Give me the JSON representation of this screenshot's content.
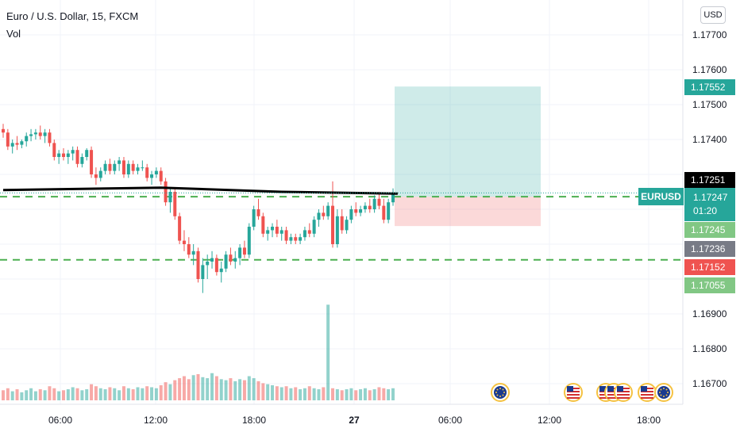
{
  "legend": {
    "symbol": "Euro / U.S. Dollar, 15, FXCM",
    "indicator": "Vol"
  },
  "currency_button": "USD",
  "y_axis_ticks": [
    "1.17700",
    "1.17600",
    "1.17500",
    "1.17400",
    "1.16900",
    "1.16800",
    "1.16700"
  ],
  "x_axis_ticks": [
    {
      "label": "06:00",
      "bold": false
    },
    {
      "label": "12:00",
      "bold": false
    },
    {
      "label": "18:00",
      "bold": false
    },
    {
      "label": "27",
      "bold": true
    },
    {
      "label": "06:00",
      "bold": false
    },
    {
      "label": "12:00",
      "bold": false
    },
    {
      "label": "18:00",
      "bold": false
    }
  ],
  "price_tags": {
    "target": {
      "value": "1.17552",
      "color": "#26a69a"
    },
    "level_black": {
      "value": "1.17251",
      "color": "#000000"
    },
    "level_green1": {
      "value": "1.17245",
      "color": "#81c784"
    },
    "level_gray": {
      "value": "1.17236",
      "color": "#787b86"
    },
    "stop": {
      "value": "1.17152",
      "color": "#ef5350"
    },
    "level_green2": {
      "value": "1.17055",
      "color": "#81c784"
    }
  },
  "current_price": {
    "symbol": "EURUSD",
    "value": "1.17247",
    "countdown": "01:20",
    "color": "#26a69a"
  },
  "colors": {
    "up": "#26a69a",
    "down": "#ef5350",
    "dashed_line": "#4caf50",
    "trend_line": "#000000",
    "profit_zone": "#26a69a",
    "loss_zone": "#ef5350"
  },
  "event_icons": [
    "eu-flag-icon",
    "us-flag-icon",
    "us-flag-icon",
    "us-flag-icon",
    "us-flag-icon",
    "us-flag-icon",
    "eu-flag-icon"
  ],
  "chart_data": {
    "type": "candlestick",
    "title": "Euro / U.S. Dollar, 15, FXCM",
    "ylim": [
      1.1665,
      1.178
    ],
    "candles": [
      [
        1.1743,
        1.17445,
        1.17405,
        1.1742
      ],
      [
        1.1742,
        1.1743,
        1.1737,
        1.1738
      ],
      [
        1.1738,
        1.174,
        1.1736,
        1.1739
      ],
      [
        1.1739,
        1.1741,
        1.1737,
        1.17385
      ],
      [
        1.17385,
        1.174,
        1.17375,
        1.17395
      ],
      [
        1.17395,
        1.1742,
        1.1738,
        1.1741
      ],
      [
        1.1741,
        1.1743,
        1.17395,
        1.17415
      ],
      [
        1.17415,
        1.1743,
        1.174,
        1.1742
      ],
      [
        1.1742,
        1.1744,
        1.174,
        1.1741
      ],
      [
        1.1741,
        1.1743,
        1.1739,
        1.1742
      ],
      [
        1.1742,
        1.1743,
        1.1738,
        1.1739
      ],
      [
        1.1739,
        1.174,
        1.1734,
        1.1735
      ],
      [
        1.1735,
        1.1737,
        1.1733,
        1.1736
      ],
      [
        1.1736,
        1.17375,
        1.1734,
        1.1735
      ],
      [
        1.1735,
        1.1737,
        1.1733,
        1.1736
      ],
      [
        1.1736,
        1.1738,
        1.1734,
        1.1737
      ],
      [
        1.1737,
        1.1738,
        1.1732,
        1.1733
      ],
      [
        1.1733,
        1.1736,
        1.1732,
        1.1735
      ],
      [
        1.1735,
        1.17375,
        1.1734,
        1.1737
      ],
      [
        1.1737,
        1.1738,
        1.1729,
        1.173
      ],
      [
        1.173,
        1.1732,
        1.1727,
        1.1729
      ],
      [
        1.1729,
        1.1732,
        1.1728,
        1.1731
      ],
      [
        1.1731,
        1.1734,
        1.173,
        1.1733
      ],
      [
        1.1733,
        1.17345,
        1.173,
        1.1731
      ],
      [
        1.1731,
        1.1734,
        1.173,
        1.1733
      ],
      [
        1.1733,
        1.1735,
        1.1731,
        1.1734
      ],
      [
        1.1734,
        1.1735,
        1.1729,
        1.173
      ],
      [
        1.173,
        1.1734,
        1.1729,
        1.1733
      ],
      [
        1.1733,
        1.1734,
        1.173,
        1.1731
      ],
      [
        1.1731,
        1.1733,
        1.173,
        1.1732
      ],
      [
        1.1732,
        1.1734,
        1.1731,
        1.1732
      ],
      [
        1.1732,
        1.1733,
        1.1728,
        1.1729
      ],
      [
        1.1729,
        1.1731,
        1.1727,
        1.173
      ],
      [
        1.173,
        1.1732,
        1.1729,
        1.1731
      ],
      [
        1.1731,
        1.1732,
        1.1727,
        1.1728
      ],
      [
        1.1728,
        1.1729,
        1.1721,
        1.1722
      ],
      [
        1.1722,
        1.1726,
        1.1719,
        1.1725
      ],
      [
        1.1725,
        1.1726,
        1.1717,
        1.1718
      ],
      [
        1.1718,
        1.1719,
        1.171,
        1.1711
      ],
      [
        1.1711,
        1.1714,
        1.1708,
        1.171
      ],
      [
        1.171,
        1.1712,
        1.1706,
        1.1707
      ],
      [
        1.1707,
        1.171,
        1.1704,
        1.1708
      ],
      [
        1.1708,
        1.1709,
        1.1699,
        1.17
      ],
      [
        1.17,
        1.1706,
        1.1696,
        1.1704
      ],
      [
        1.1704,
        1.1707,
        1.17,
        1.1705
      ],
      [
        1.1705,
        1.1708,
        1.1703,
        1.1706
      ],
      [
        1.1706,
        1.1707,
        1.1701,
        1.1702
      ],
      [
        1.1702,
        1.1705,
        1.1699,
        1.1703
      ],
      [
        1.1703,
        1.1708,
        1.1702,
        1.1707
      ],
      [
        1.1707,
        1.1709,
        1.1704,
        1.1705
      ],
      [
        1.1705,
        1.1708,
        1.1703,
        1.1706
      ],
      [
        1.1706,
        1.171,
        1.1704,
        1.1709
      ],
      [
        1.1709,
        1.1711,
        1.1706,
        1.1707
      ],
      [
        1.1707,
        1.1716,
        1.1706,
        1.1715
      ],
      [
        1.1715,
        1.1721,
        1.1714,
        1.172
      ],
      [
        1.172,
        1.1723,
        1.1717,
        1.1718
      ],
      [
        1.1718,
        1.1719,
        1.1712,
        1.1713
      ],
      [
        1.1713,
        1.1715,
        1.1711,
        1.1714
      ],
      [
        1.1714,
        1.1716,
        1.1712,
        1.1715
      ],
      [
        1.1715,
        1.1717,
        1.1712,
        1.1713
      ],
      [
        1.1713,
        1.1715,
        1.1711,
        1.1714
      ],
      [
        1.1714,
        1.1715,
        1.171,
        1.1711
      ],
      [
        1.1711,
        1.1713,
        1.171,
        1.1712
      ],
      [
        1.1712,
        1.1713,
        1.171,
        1.1711
      ],
      [
        1.1711,
        1.1713,
        1.171,
        1.1712
      ],
      [
        1.1712,
        1.1715,
        1.1711,
        1.1714
      ],
      [
        1.1714,
        1.1716,
        1.1712,
        1.1713
      ],
      [
        1.1713,
        1.1718,
        1.1712,
        1.1717
      ],
      [
        1.1717,
        1.172,
        1.1715,
        1.1719
      ],
      [
        1.1719,
        1.1721,
        1.1717,
        1.1718
      ],
      [
        1.1718,
        1.1722,
        1.1717,
        1.1721
      ],
      [
        1.1721,
        1.1728,
        1.1709,
        1.171
      ],
      [
        1.171,
        1.172,
        1.1709,
        1.1718
      ],
      [
        1.1718,
        1.172,
        1.1713,
        1.1714
      ],
      [
        1.1714,
        1.1718,
        1.1713,
        1.1717
      ],
      [
        1.1717,
        1.1721,
        1.1716,
        1.172
      ],
      [
        1.172,
        1.1722,
        1.1718,
        1.1719
      ],
      [
        1.1719,
        1.1721,
        1.1718,
        1.172
      ],
      [
        1.172,
        1.1722,
        1.1719,
        1.1721
      ],
      [
        1.1721,
        1.1723,
        1.1719,
        1.172
      ],
      [
        1.172,
        1.1724,
        1.1719,
        1.1723
      ],
      [
        1.1723,
        1.1725,
        1.172,
        1.1721
      ],
      [
        1.1721,
        1.1723,
        1.1716,
        1.1717
      ],
      [
        1.1717,
        1.1723,
        1.1716,
        1.1722
      ],
      [
        1.1722,
        1.1726,
        1.1721,
        1.17247
      ]
    ],
    "volume": [
      10,
      12,
      9,
      11,
      8,
      10,
      12,
      9,
      11,
      10,
      14,
      12,
      9,
      10,
      11,
      13,
      12,
      10,
      11,
      16,
      14,
      12,
      11,
      13,
      12,
      10,
      14,
      12,
      11,
      13,
      12,
      14,
      13,
      12,
      15,
      18,
      16,
      20,
      22,
      24,
      21,
      25,
      26,
      23,
      22,
      27,
      24,
      21,
      20,
      22,
      19,
      21,
      20,
      24,
      22,
      19,
      17,
      16,
      15,
      14,
      13,
      14,
      12,
      13,
      11,
      12,
      14,
      12,
      11,
      13,
      95,
      12,
      11,
      10,
      11,
      12,
      10,
      11,
      12,
      10,
      11,
      13,
      12,
      11,
      12
    ],
    "trend_line": [
      [
        0,
        1.17255
      ],
      [
        34,
        1.17262
      ],
      [
        60,
        1.1725
      ],
      [
        85,
        1.17245
      ]
    ],
    "horizontal_levels": [
      1.17236,
      1.17055
    ],
    "position": {
      "entry": 1.17236,
      "target": 1.17552,
      "stop": 1.17152
    },
    "x_labels": [
      "06:00",
      "12:00",
      "18:00",
      "27",
      "06:00",
      "12:00",
      "18:00"
    ]
  }
}
